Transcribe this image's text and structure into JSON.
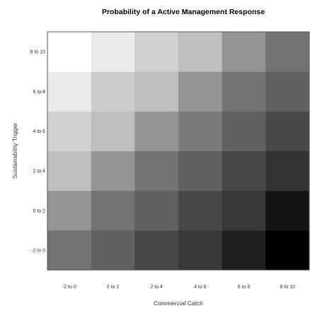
{
  "chart_data": {
    "type": "heatmap",
    "title": "Probability of a Active Management Response",
    "xlabel": "Commercial Catch",
    "ylabel": "Sustainability Trigger",
    "x_categories": [
      "-2 to 0",
      "0 to 2",
      "2 to 4",
      "4 to 6",
      "6 to 8",
      "8 to 10"
    ],
    "y_categories": [
      "-2 to 0",
      "0 to 2",
      "2 to 4",
      "4 to 6",
      "6 to 8",
      "8 to 10"
    ],
    "color_scale": {
      "low": "#ffffff",
      "high": "#000000"
    },
    "values": [
      [
        0.55,
        0.62,
        0.72,
        0.78,
        0.88,
        1.0
      ],
      [
        0.42,
        0.55,
        0.62,
        0.72,
        0.78,
        0.92
      ],
      [
        0.25,
        0.42,
        0.55,
        0.62,
        0.72,
        0.8
      ],
      [
        0.18,
        0.25,
        0.42,
        0.52,
        0.62,
        0.72
      ],
      [
        0.08,
        0.2,
        0.25,
        0.42,
        0.55,
        0.62
      ],
      [
        0.0,
        0.08,
        0.18,
        0.25,
        0.42,
        0.55
      ]
    ],
    "grid": false,
    "legend": "none"
  }
}
